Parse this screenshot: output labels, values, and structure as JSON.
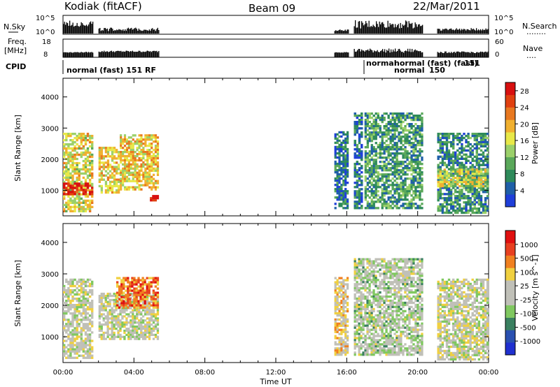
{
  "header": {
    "station": "Kodiak (fitACF)",
    "beam": "Beam 09",
    "date": "22/Mar/2011"
  },
  "panels": {
    "nsky_label": "N.Sky",
    "nsky_ticks": [
      "10^5",
      "10^0"
    ],
    "nsearch_label": "N.Search",
    "nsearch_dots": "........",
    "nsearch_ticks": [
      "10^5",
      "10^0"
    ],
    "freq_label": "Freq.",
    "freq_unit": "[MHz]",
    "freq_ticks": [
      "18",
      "8"
    ],
    "nave_label": "Nave",
    "nave_dots": "....",
    "nave_ticks": [
      "60",
      "0"
    ],
    "cpid_label": "CPID",
    "cpid_text_1": "normal (fast) 151 RF",
    "cpid_text_2": "normal",
    "cpid_text_3": "normal (fast) (fast)",
    "cpid_text_4": "151",
    "cpid_text_5": "normal",
    "cpid_text_6": "150"
  },
  "colors": {
    "power": [
      "#1f3fd9",
      "#1f5fa8",
      "#2e8a5a",
      "#5aa85a",
      "#9bd06a",
      "#e8e848",
      "#f0b030",
      "#e87820",
      "#e04010",
      "#d81010"
    ],
    "velocity": [
      "#2030d0",
      "#2a50b0",
      "#3a8060",
      "#80c860",
      "#c0c0b8",
      "#c0c0b8",
      "#f0d040",
      "#f08020",
      "#e84020",
      "#e01010"
    ]
  },
  "chart_data": [
    {
      "type": "heatmap",
      "title": "",
      "xlabel": "",
      "ylabel": "Slant Range [km]",
      "x_ticks": [
        "00:00",
        "04:00",
        "08:00",
        "12:00",
        "16:00",
        "20:00",
        "00:00"
      ],
      "x_range_hours": [
        0,
        24
      ],
      "y_ticks": [
        1000,
        2000,
        3000,
        4000
      ],
      "ylim": [
        180,
        4600
      ],
      "colorbar": {
        "label": "Power [dB]",
        "ticks": [
          4,
          8,
          12,
          16,
          20,
          24,
          28
        ],
        "range": [
          0,
          30
        ]
      },
      "data_blocks": [
        {
          "t": [
            0.0,
            1.7
          ],
          "r": [
            300,
            2850
          ],
          "level": 0.55
        },
        {
          "t": [
            0.0,
            1.7
          ],
          "r": [
            850,
            1250
          ],
          "level": 0.95
        },
        {
          "t": [
            2.0,
            3.2
          ],
          "r": [
            900,
            2400
          ],
          "level": 0.6
        },
        {
          "t": [
            3.2,
            5.4
          ],
          "r": [
            1000,
            2800
          ],
          "level": 0.6
        },
        {
          "t": [
            4.9,
            5.4
          ],
          "r": [
            650,
            850
          ],
          "level": 0.95
        },
        {
          "t": [
            15.3,
            16.1
          ],
          "r": [
            400,
            2900
          ],
          "level": 0.2
        },
        {
          "t": [
            16.4,
            16.9
          ],
          "r": [
            400,
            3500
          ],
          "level": 0.2
        },
        {
          "t": [
            17.0,
            20.3
          ],
          "r": [
            400,
            3500
          ],
          "level": 0.3
        },
        {
          "t": [
            21.1,
            24.0
          ],
          "r": [
            250,
            2850
          ],
          "level": 0.25
        },
        {
          "t": [
            21.1,
            24.0
          ],
          "r": [
            1100,
            1700
          ],
          "level": 0.5
        }
      ]
    },
    {
      "type": "heatmap",
      "title": "",
      "xlabel": "Time UT",
      "ylabel": "Slant Range [km]",
      "x_ticks": [
        "00:00",
        "04:00",
        "08:00",
        "12:00",
        "16:00",
        "20:00",
        "00:00"
      ],
      "x_range_hours": [
        0,
        24
      ],
      "y_ticks": [
        1000,
        2000,
        3000,
        4000
      ],
      "ylim": [
        180,
        4600
      ],
      "colorbar": {
        "label": "Velocity [m s^-1]",
        "ticks": [
          1000,
          500,
          100,
          25,
          -25,
          -100,
          -500,
          -1000
        ]
      },
      "data_blocks": [
        {
          "t": [
            0.0,
            1.7
          ],
          "r": [
            300,
            2850
          ],
          "level": 0.5
        },
        {
          "t": [
            2.0,
            5.4
          ],
          "r": [
            900,
            2400
          ],
          "level": 0.5
        },
        {
          "t": [
            3.0,
            5.4
          ],
          "r": [
            1900,
            2900
          ],
          "level": 0.8
        },
        {
          "t": [
            15.3,
            16.1
          ],
          "r": [
            400,
            2900
          ],
          "level": 0.6
        },
        {
          "t": [
            16.4,
            20.3
          ],
          "r": [
            400,
            3500
          ],
          "level": 0.45
        },
        {
          "t": [
            21.1,
            24.0
          ],
          "r": [
            250,
            2850
          ],
          "level": 0.5
        }
      ]
    }
  ]
}
